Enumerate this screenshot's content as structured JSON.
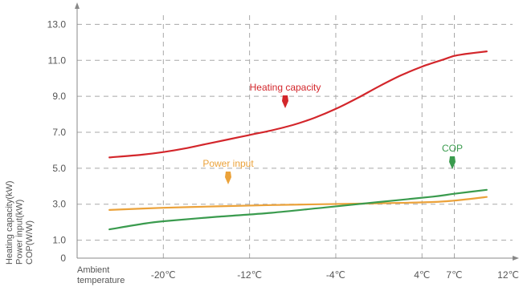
{
  "chart_data": {
    "type": "line",
    "title": "",
    "xlabel": [
      "Ambient",
      "temperature"
    ],
    "ylabel": [
      "Heating capacity(kW)",
      "Power input(kW)",
      "COP(W/W)"
    ],
    "x_tick_labels": [
      {
        "x": -20,
        "label": "-20℃"
      },
      {
        "x": -12,
        "label": "-12℃"
      },
      {
        "x": -4,
        "label": "-4℃"
      },
      {
        "x": 4,
        "label": "4℃"
      },
      {
        "x": 7,
        "label": "7℃"
      },
      {
        "x": 12,
        "label": "12℃"
      }
    ],
    "y_tick_labels": [
      {
        "y": 0,
        "label": "0"
      },
      {
        "y": 1,
        "label": "1.0"
      },
      {
        "y": 3,
        "label": "3.0"
      },
      {
        "y": 5,
        "label": "5.0"
      },
      {
        "y": 7,
        "label": "7.0"
      },
      {
        "y": 9,
        "label": "9.0"
      },
      {
        "y": 11,
        "label": "11.0"
      },
      {
        "y": 13,
        "label": "13.0"
      }
    ],
    "xlim": [
      -28,
      13
    ],
    "ylim": [
      0,
      14
    ],
    "grid": true,
    "series": [
      {
        "name": "Heating capacity",
        "color": "#d3262b",
        "x": [
          -25,
          -22,
          -20,
          -18,
          -16,
          -14,
          -12,
          -10,
          -8,
          -6,
          -4,
          -2,
          0,
          2,
          4,
          6,
          7,
          8,
          10
        ],
        "values": [
          5.6,
          5.75,
          5.9,
          6.1,
          6.35,
          6.6,
          6.85,
          7.1,
          7.4,
          7.8,
          8.3,
          8.9,
          9.55,
          10.15,
          10.65,
          11.05,
          11.25,
          11.35,
          11.5
        ]
      },
      {
        "name": "Power input",
        "color": "#eba23a",
        "x": [
          -25,
          -20,
          -15,
          -10,
          -5,
          0,
          5,
          7,
          10
        ],
        "values": [
          2.68,
          2.8,
          2.88,
          2.95,
          3.0,
          3.05,
          3.12,
          3.2,
          3.4
        ]
      },
      {
        "name": "COP",
        "color": "#3a9b4e",
        "x": [
          -25,
          -22,
          -20,
          -15,
          -10,
          -5,
          0,
          5,
          7,
          10
        ],
        "values": [
          1.6,
          1.9,
          2.05,
          2.3,
          2.52,
          2.82,
          3.12,
          3.42,
          3.58,
          3.8
        ]
      }
    ]
  }
}
